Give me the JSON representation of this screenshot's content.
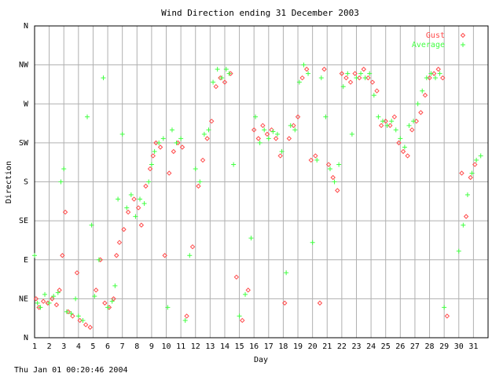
{
  "chart_data": {
    "type": "scatter",
    "title": "Wind Direction ending 31 December 2003",
    "xlabel": "Day",
    "ylabel": "Direction",
    "xlim": [
      1,
      32
    ],
    "ylim": [
      0,
      360
    ],
    "x_ticks": [
      "1",
      "2",
      "3",
      "4",
      "5",
      "6",
      "7",
      "8",
      "9",
      "10",
      "11",
      "12",
      "13",
      "14",
      "15",
      "16",
      "17",
      "18",
      "19",
      "20",
      "21",
      "22",
      "23",
      "24",
      "25",
      "26",
      "27",
      "28",
      "29",
      "30",
      "31"
    ],
    "y_ticks": [
      {
        "label": "N",
        "value": 0
      },
      {
        "label": "NE",
        "value": 45
      },
      {
        "label": "E",
        "value": 90
      },
      {
        "label": "SE",
        "value": 135
      },
      {
        "label": "S",
        "value": 180
      },
      {
        "label": "SW",
        "value": 225
      },
      {
        "label": "W",
        "value": 270
      },
      {
        "label": "NW",
        "value": 315
      },
      {
        "label": "N",
        "value": 360
      }
    ],
    "grid": true,
    "legend": "top-right",
    "footer": "Thu Jan 01 00:20:46 2004",
    "series": [
      {
        "name": "Gust",
        "color": "#ff4a4a",
        "marker": "diamond",
        "points": [
          [
            1.1,
            45
          ],
          [
            1.3,
            35
          ],
          [
            1.6,
            42
          ],
          [
            1.9,
            40
          ],
          [
            2.2,
            45
          ],
          [
            2.5,
            38
          ],
          [
            2.7,
            55
          ],
          [
            2.9,
            95
          ],
          [
            3.1,
            145
          ],
          [
            3.3,
            30
          ],
          [
            3.6,
            25
          ],
          [
            3.9,
            75
          ],
          [
            4.1,
            20
          ],
          [
            4.5,
            15
          ],
          [
            4.8,
            12
          ],
          [
            5.2,
            55
          ],
          [
            5.5,
            90
          ],
          [
            5.8,
            40
          ],
          [
            6.1,
            35
          ],
          [
            6.4,
            45
          ],
          [
            6.6,
            95
          ],
          [
            6.8,
            110
          ],
          [
            7.1,
            125
          ],
          [
            7.4,
            145
          ],
          [
            7.8,
            160
          ],
          [
            8.1,
            150
          ],
          [
            8.3,
            130
          ],
          [
            8.6,
            175
          ],
          [
            8.9,
            195
          ],
          [
            9.1,
            210
          ],
          [
            9.3,
            225
          ],
          [
            9.6,
            220
          ],
          [
            9.9,
            95
          ],
          [
            10.2,
            190
          ],
          [
            10.5,
            215
          ],
          [
            10.8,
            225
          ],
          [
            11.1,
            220
          ],
          [
            11.4,
            25
          ],
          [
            11.8,
            105
          ],
          [
            12.2,
            175
          ],
          [
            12.5,
            205
          ],
          [
            12.8,
            230
          ],
          [
            13.1,
            250
          ],
          [
            13.4,
            290
          ],
          [
            13.7,
            300
          ],
          [
            14.0,
            295
          ],
          [
            14.4,
            305
          ],
          [
            14.8,
            70
          ],
          [
            15.2,
            20
          ],
          [
            15.6,
            55
          ],
          [
            16.0,
            240
          ],
          [
            16.3,
            230
          ],
          [
            16.6,
            245
          ],
          [
            16.9,
            235
          ],
          [
            17.2,
            240
          ],
          [
            17.5,
            230
          ],
          [
            17.8,
            210
          ],
          [
            18.1,
            40
          ],
          [
            18.4,
            230
          ],
          [
            18.7,
            245
          ],
          [
            19.0,
            255
          ],
          [
            19.3,
            300
          ],
          [
            19.6,
            310
          ],
          [
            19.9,
            205
          ],
          [
            20.2,
            210
          ],
          [
            20.5,
            40
          ],
          [
            20.8,
            310
          ],
          [
            21.1,
            200
          ],
          [
            21.4,
            185
          ],
          [
            21.7,
            170
          ],
          [
            22.0,
            305
          ],
          [
            22.3,
            300
          ],
          [
            22.6,
            295
          ],
          [
            22.9,
            305
          ],
          [
            23.2,
            300
          ],
          [
            23.5,
            310
          ],
          [
            23.8,
            300
          ],
          [
            24.1,
            295
          ],
          [
            24.4,
            285
          ],
          [
            24.7,
            245
          ],
          [
            25.0,
            250
          ],
          [
            25.3,
            245
          ],
          [
            25.6,
            255
          ],
          [
            25.9,
            225
          ],
          [
            26.2,
            215
          ],
          [
            26.5,
            210
          ],
          [
            26.8,
            240
          ],
          [
            27.1,
            250
          ],
          [
            27.4,
            260
          ],
          [
            27.7,
            280
          ],
          [
            28.0,
            300
          ],
          [
            28.3,
            305
          ],
          [
            28.6,
            310
          ],
          [
            28.9,
            300
          ],
          [
            29.2,
            25
          ],
          [
            30.2,
            190
          ],
          [
            30.5,
            140
          ],
          [
            30.8,
            185
          ],
          [
            31.1,
            200
          ]
        ]
      },
      {
        "name": "Average",
        "color": "#40ff40",
        "marker": "plus",
        "points": [
          [
            1.0,
            95
          ],
          [
            1.2,
            40
          ],
          [
            1.4,
            35
          ],
          [
            1.7,
            50
          ],
          [
            2.0,
            40
          ],
          [
            2.3,
            48
          ],
          [
            2.6,
            52
          ],
          [
            2.8,
            180
          ],
          [
            3.0,
            195
          ],
          [
            3.2,
            30
          ],
          [
            3.5,
            28
          ],
          [
            3.8,
            45
          ],
          [
            4.0,
            25
          ],
          [
            4.3,
            20
          ],
          [
            4.6,
            255
          ],
          [
            4.9,
            130
          ],
          [
            5.1,
            48
          ],
          [
            5.4,
            90
          ],
          [
            5.7,
            300
          ],
          [
            6.0,
            35
          ],
          [
            6.3,
            42
          ],
          [
            6.5,
            60
          ],
          [
            6.7,
            160
          ],
          [
            7.0,
            235
          ],
          [
            7.3,
            150
          ],
          [
            7.6,
            165
          ],
          [
            7.9,
            140
          ],
          [
            8.2,
            160
          ],
          [
            8.5,
            155
          ],
          [
            8.8,
            180
          ],
          [
            9.0,
            200
          ],
          [
            9.2,
            215
          ],
          [
            9.5,
            225
          ],
          [
            9.8,
            230
          ],
          [
            10.1,
            35
          ],
          [
            10.4,
            240
          ],
          [
            10.7,
            225
          ],
          [
            11.0,
            230
          ],
          [
            11.3,
            20
          ],
          [
            11.6,
            95
          ],
          [
            12.0,
            195
          ],
          [
            12.3,
            180
          ],
          [
            12.6,
            235
          ],
          [
            12.9,
            240
          ],
          [
            13.2,
            295
          ],
          [
            13.5,
            310
          ],
          [
            13.8,
            300
          ],
          [
            14.1,
            310
          ],
          [
            14.3,
            305
          ],
          [
            14.6,
            200
          ],
          [
            15.0,
            25
          ],
          [
            15.4,
            50
          ],
          [
            15.8,
            115
          ],
          [
            16.1,
            255
          ],
          [
            16.4,
            225
          ],
          [
            16.7,
            240
          ],
          [
            17.0,
            230
          ],
          [
            17.3,
            238
          ],
          [
            17.6,
            235
          ],
          [
            17.9,
            215
          ],
          [
            18.2,
            75
          ],
          [
            18.5,
            245
          ],
          [
            18.8,
            240
          ],
          [
            19.1,
            295
          ],
          [
            19.4,
            315
          ],
          [
            19.7,
            305
          ],
          [
            20.0,
            110
          ],
          [
            20.3,
            205
          ],
          [
            20.6,
            300
          ],
          [
            20.9,
            255
          ],
          [
            21.2,
            195
          ],
          [
            21.5,
            180
          ],
          [
            21.8,
            200
          ],
          [
            22.1,
            290
          ],
          [
            22.4,
            305
          ],
          [
            22.7,
            235
          ],
          [
            23.0,
            300
          ],
          [
            23.3,
            305
          ],
          [
            23.6,
            300
          ],
          [
            23.9,
            305
          ],
          [
            24.2,
            280
          ],
          [
            24.5,
            255
          ],
          [
            24.8,
            250
          ],
          [
            25.1,
            245
          ],
          [
            25.4,
            250
          ],
          [
            25.7,
            240
          ],
          [
            26.0,
            230
          ],
          [
            26.3,
            220
          ],
          [
            26.6,
            245
          ],
          [
            26.9,
            250
          ],
          [
            27.2,
            270
          ],
          [
            27.5,
            285
          ],
          [
            27.8,
            300
          ],
          [
            28.1,
            305
          ],
          [
            28.4,
            300
          ],
          [
            28.7,
            305
          ],
          [
            29.0,
            35
          ],
          [
            30.0,
            100
          ],
          [
            30.3,
            130
          ],
          [
            30.6,
            165
          ],
          [
            30.9,
            190
          ],
          [
            31.2,
            205
          ],
          [
            31.5,
            210
          ]
        ]
      }
    ]
  },
  "colors": {
    "gust": "#ff4a4a",
    "average": "#40ff40",
    "grid": "#b0b0b0",
    "axis": "#000000"
  }
}
